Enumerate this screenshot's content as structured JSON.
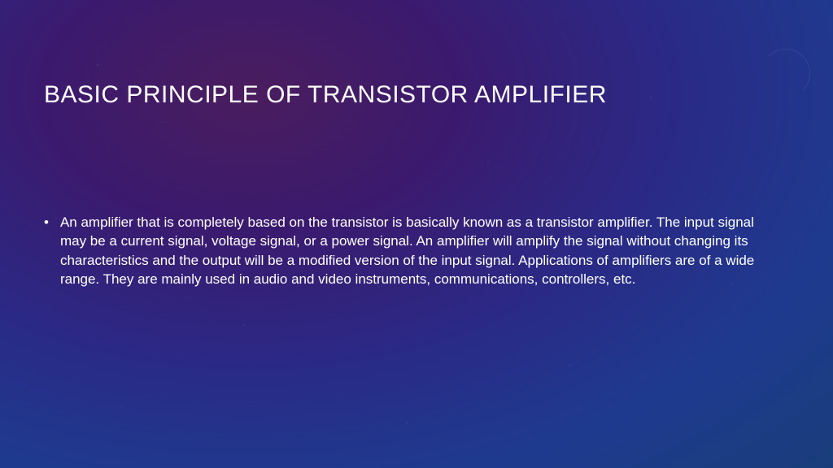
{
  "slide": {
    "title": "BASIC PRINCIPLE OF TRANSISTOR AMPLIFIER",
    "title_fontsize": 30,
    "title_color": "#ffffff",
    "bullet_text": "An amplifier that is completely based on the transistor is basically known as a transistor amplifier. The input signal may be a current signal, voltage signal, or a power signal. An amplifier will amplify the signal without changing its characteristics and the output will be a modified version of the input signal. Applications of amplifiers are of a wide range. They are mainly used in audio and video instruments, communications, controllers, etc.",
    "body_fontsize": 17,
    "body_color": "#ffffff",
    "bullet_marker": "•",
    "background_gradient": {
      "type": "radial",
      "stops": [
        "#4a1d5e",
        "#3b1a6e",
        "#2b2985",
        "#1e3a8f",
        "#1a3d7a"
      ]
    }
  }
}
